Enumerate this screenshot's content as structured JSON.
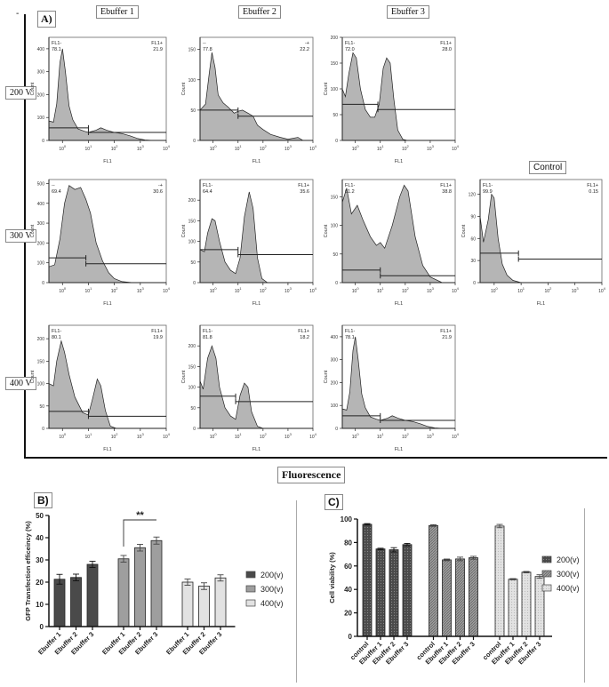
{
  "figure": {
    "panel_a_label": "A)",
    "panel_b_label": "B)",
    "panel_c_label": "C)",
    "column_headers": [
      "Ebuffer 1",
      "Ebuffer 2",
      "Ebuffer 3"
    ],
    "row_headers": [
      "200 V",
      "300 V",
      "400 V"
    ],
    "control_header": "Control",
    "footer_label": "Fluorescence",
    "corner_mark": "-"
  },
  "chart_data": [
    {
      "type": "histogram",
      "id": "e1-200",
      "xlabel": "FL1",
      "ylabel": "Count",
      "xscale": "log",
      "xlim": [
        0.3,
        10000
      ],
      "xticks": [
        "10^0",
        "10^1",
        "10^2",
        "10^3",
        "10^4"
      ],
      "ylim": [
        0,
        450
      ],
      "yticks": [
        0,
        100,
        200,
        300,
        400
      ],
      "gate_neg_label": "FL1-",
      "gate_neg_value": "78.1",
      "gate_pos_label": "FL1+",
      "gate_pos_value": "21.9",
      "gate_neg_level": 55,
      "gate_pos_level": 35,
      "gate_split": 10,
      "profile": [
        [
          0.3,
          85
        ],
        [
          0.45,
          80
        ],
        [
          0.6,
          160
        ],
        [
          0.8,
          340
        ],
        [
          1.0,
          400
        ],
        [
          1.3,
          300
        ],
        [
          1.8,
          150
        ],
        [
          2.5,
          90
        ],
        [
          4,
          50
        ],
        [
          7,
          40
        ],
        [
          10,
          35
        ],
        [
          20,
          45
        ],
        [
          30,
          55
        ],
        [
          50,
          45
        ],
        [
          100,
          35
        ],
        [
          200,
          30
        ],
        [
          400,
          20
        ],
        [
          800,
          8
        ],
        [
          1500,
          2
        ],
        [
          3000,
          0
        ]
      ]
    },
    {
      "type": "histogram",
      "id": "e2-200",
      "xlabel": "FL1",
      "ylabel": "Count",
      "xscale": "log",
      "xlim": [
        0.3,
        10000
      ],
      "xticks": [
        "10^0",
        "10^1",
        "10^2",
        "10^3",
        "10^4"
      ],
      "ylim": [
        0,
        170
      ],
      "yticks": [
        0,
        50,
        100,
        150
      ],
      "gate_neg_label": "--",
      "gate_neg_value": "77.8",
      "gate_pos_label": "-+",
      "gate_pos_value": "22.2",
      "gate_neg_level": 50,
      "gate_pos_level": 40,
      "gate_split": 10,
      "profile": [
        [
          0.3,
          50
        ],
        [
          0.5,
          60
        ],
        [
          0.7,
          110
        ],
        [
          0.9,
          145
        ],
        [
          1.2,
          120
        ],
        [
          1.6,
          75
        ],
        [
          2.5,
          62
        ],
        [
          4,
          55
        ],
        [
          7,
          45
        ],
        [
          10,
          48
        ],
        [
          15,
          50
        ],
        [
          25,
          45
        ],
        [
          40,
          40
        ],
        [
          60,
          25
        ],
        [
          100,
          18
        ],
        [
          200,
          10
        ],
        [
          500,
          5
        ],
        [
          1000,
          2
        ],
        [
          2500,
          5
        ],
        [
          4000,
          0
        ]
      ]
    },
    {
      "type": "histogram",
      "id": "e3-200",
      "xlabel": "FL1",
      "ylabel": "Count",
      "xscale": "log",
      "xlim": [
        0.3,
        10000
      ],
      "xticks": [
        "10^0",
        "10^1",
        "10^2",
        "10^3",
        "10^4"
      ],
      "ylim": [
        0,
        200
      ],
      "yticks": [
        0,
        50,
        100,
        150,
        200
      ],
      "gate_neg_label": "FL1-",
      "gate_neg_value": "72.0",
      "gate_pos_label": "FL1+",
      "gate_pos_value": "28.0",
      "gate_neg_level": 70,
      "gate_pos_level": 60,
      "gate_split": 8,
      "profile": [
        [
          0.3,
          100
        ],
        [
          0.4,
          85
        ],
        [
          0.55,
          130
        ],
        [
          0.8,
          170
        ],
        [
          1.1,
          160
        ],
        [
          1.6,
          100
        ],
        [
          2.5,
          60
        ],
        [
          4,
          45
        ],
        [
          6,
          45
        ],
        [
          9,
          70
        ],
        [
          13,
          140
        ],
        [
          18,
          160
        ],
        [
          25,
          150
        ],
        [
          35,
          80
        ],
        [
          50,
          20
        ],
        [
          80,
          2
        ],
        [
          120,
          0
        ]
      ]
    },
    {
      "type": "histogram",
      "id": "e1-300",
      "xlabel": "FL1",
      "ylabel": "Count",
      "xscale": "log",
      "xlim": [
        0.3,
        10000
      ],
      "xticks": [
        "10^0",
        "10^1",
        "10^2",
        "10^3",
        "10^4"
      ],
      "ylim": [
        0,
        520
      ],
      "yticks": [
        0,
        100,
        200,
        300,
        400,
        500
      ],
      "gate_neg_label": "--",
      "gate_neg_value": "69.4",
      "gate_pos_label": "-+",
      "gate_pos_value": "30.6",
      "gate_neg_level": 125,
      "gate_pos_level": 95,
      "gate_split": 8,
      "profile": [
        [
          0.3,
          80
        ],
        [
          0.5,
          90
        ],
        [
          0.8,
          220
        ],
        [
          1.2,
          400
        ],
        [
          1.8,
          490
        ],
        [
          3,
          470
        ],
        [
          5,
          480
        ],
        [
          8,
          420
        ],
        [
          12,
          350
        ],
        [
          20,
          200
        ],
        [
          35,
          110
        ],
        [
          60,
          50
        ],
        [
          100,
          20
        ],
        [
          200,
          5
        ],
        [
          500,
          0
        ]
      ]
    },
    {
      "type": "histogram",
      "id": "e2-300",
      "xlabel": "FL1",
      "ylabel": "Count",
      "xscale": "log",
      "xlim": [
        0.3,
        10000
      ],
      "xticks": [
        "10^0",
        "10^1",
        "10^2",
        "10^3",
        "10^4"
      ],
      "ylim": [
        0,
        250
      ],
      "yticks": [
        0,
        50,
        100,
        150,
        200
      ],
      "gate_neg_label": "FL1-",
      "gate_neg_value": "64.4",
      "gate_pos_label": "FL1+",
      "gate_pos_value": "35.6",
      "gate_neg_level": 80,
      "gate_pos_level": 68,
      "gate_split": 10,
      "profile": [
        [
          0.3,
          80
        ],
        [
          0.45,
          75
        ],
        [
          0.6,
          120
        ],
        [
          0.9,
          155
        ],
        [
          1.2,
          150
        ],
        [
          1.8,
          100
        ],
        [
          3,
          50
        ],
        [
          5,
          30
        ],
        [
          8,
          22
        ],
        [
          12,
          60
        ],
        [
          18,
          160
        ],
        [
          28,
          220
        ],
        [
          40,
          180
        ],
        [
          60,
          60
        ],
        [
          90,
          10
        ],
        [
          150,
          0
        ]
      ]
    },
    {
      "type": "histogram",
      "id": "e3-300",
      "xlabel": "FL1",
      "ylabel": "Count",
      "xscale": "log",
      "xlim": [
        0.3,
        10000
      ],
      "xticks": [
        "10^0",
        "10^1",
        "10^2",
        "10^3",
        "10^4"
      ],
      "ylim": [
        0,
        180
      ],
      "yticks": [
        0,
        50,
        100,
        150
      ],
      "gate_neg_label": "FL1-",
      "gate_neg_value": "61.2",
      "gate_pos_label": "FL1+",
      "gate_pos_value": "38.8",
      "gate_neg_level": 22,
      "gate_pos_level": 12,
      "gate_split": 10,
      "profile": [
        [
          0.3,
          140
        ],
        [
          0.45,
          165
        ],
        [
          0.7,
          120
        ],
        [
          1.2,
          135
        ],
        [
          2,
          110
        ],
        [
          4,
          80
        ],
        [
          7,
          65
        ],
        [
          10,
          70
        ],
        [
          15,
          60
        ],
        [
          30,
          100
        ],
        [
          60,
          150
        ],
        [
          90,
          170
        ],
        [
          130,
          160
        ],
        [
          250,
          80
        ],
        [
          500,
          30
        ],
        [
          1000,
          10
        ],
        [
          3000,
          0
        ]
      ]
    },
    {
      "type": "histogram",
      "id": "control",
      "xlabel": "FL1",
      "ylabel": "Count",
      "xscale": "log",
      "xlim": [
        0.3,
        10000
      ],
      "xticks": [
        "10^0",
        "10^1",
        "10^2",
        "10^3",
        "10^4"
      ],
      "ylim": [
        0,
        140
      ],
      "yticks": [
        0,
        30,
        60,
        90,
        120
      ],
      "gate_neg_label": "FL1-",
      "gate_neg_value": "99.9",
      "gate_pos_label": "FL1+",
      "gate_pos_value": "0.15",
      "gate_neg_level": 40,
      "gate_pos_level": 32,
      "gate_split": 8,
      "profile": [
        [
          0.3,
          90
        ],
        [
          0.4,
          55
        ],
        [
          0.6,
          85
        ],
        [
          0.8,
          120
        ],
        [
          1.0,
          115
        ],
        [
          1.4,
          60
        ],
        [
          2,
          25
        ],
        [
          3,
          10
        ],
        [
          5,
          3
        ],
        [
          10,
          0
        ]
      ]
    },
    {
      "type": "histogram",
      "id": "e1-400",
      "xlabel": "FL1",
      "ylabel": "Count",
      "xscale": "log",
      "xlim": [
        0.3,
        10000
      ],
      "xticks": [
        "10^0",
        "10^1",
        "10^2",
        "10^3",
        "10^4"
      ],
      "ylim": [
        0,
        230
      ],
      "yticks": [
        0,
        50,
        100,
        150,
        200
      ],
      "gate_neg_label": "FL1-",
      "gate_neg_value": "80.1",
      "gate_pos_label": "FL1+",
      "gate_pos_value": "19.9",
      "gate_neg_level": 38,
      "gate_pos_level": 27,
      "gate_split": 10,
      "profile": [
        [
          0.3,
          100
        ],
        [
          0.45,
          95
        ],
        [
          0.6,
          150
        ],
        [
          0.9,
          195
        ],
        [
          1.2,
          170
        ],
        [
          1.8,
          120
        ],
        [
          3,
          70
        ],
        [
          6,
          35
        ],
        [
          10,
          30
        ],
        [
          15,
          70
        ],
        [
          22,
          110
        ],
        [
          30,
          95
        ],
        [
          45,
          40
        ],
        [
          70,
          5
        ],
        [
          120,
          0
        ]
      ]
    },
    {
      "type": "histogram",
      "id": "e2-400",
      "xlabel": "FL1",
      "ylabel": "Count",
      "xscale": "log",
      "xlim": [
        0.3,
        10000
      ],
      "xticks": [
        "10^0",
        "10^1",
        "10^2",
        "10^3",
        "10^4"
      ],
      "ylim": [
        0,
        250
      ],
      "yticks": [
        0,
        50,
        100,
        150,
        200
      ],
      "gate_neg_label": "FL1-",
      "gate_neg_value": "81.8",
      "gate_pos_label": "FL1+",
      "gate_pos_value": "18.2",
      "gate_neg_level": 78,
      "gate_pos_level": 65,
      "gate_split": 8,
      "profile": [
        [
          0.3,
          115
        ],
        [
          0.4,
          95
        ],
        [
          0.6,
          170
        ],
        [
          0.9,
          200
        ],
        [
          1.3,
          170
        ],
        [
          1.8,
          100
        ],
        [
          3,
          50
        ],
        [
          5,
          30
        ],
        [
          8,
          22
        ],
        [
          12,
          80
        ],
        [
          18,
          110
        ],
        [
          25,
          100
        ],
        [
          35,
          40
        ],
        [
          60,
          5
        ],
        [
          100,
          0
        ]
      ]
    },
    {
      "type": "histogram",
      "id": "e3-400",
      "xlabel": "FL1",
      "ylabel": "Count",
      "xscale": "log",
      "xlim": [
        0.3,
        10000
      ],
      "xticks": [
        "10^0",
        "10^1",
        "10^2",
        "10^3",
        "10^4"
      ],
      "ylim": [
        0,
        450
      ],
      "yticks": [
        0,
        100,
        200,
        300,
        400
      ],
      "gate_neg_label": "FL1-",
      "gate_neg_value": "78.1",
      "gate_pos_label": "FL1+",
      "gate_pos_value": "21.9",
      "gate_neg_level": 55,
      "gate_pos_level": 35,
      "gate_split": 10,
      "profile": [
        [
          0.3,
          85
        ],
        [
          0.45,
          80
        ],
        [
          0.6,
          160
        ],
        [
          0.8,
          340
        ],
        [
          1.0,
          400
        ],
        [
          1.3,
          300
        ],
        [
          1.8,
          150
        ],
        [
          2.5,
          90
        ],
        [
          4,
          50
        ],
        [
          7,
          40
        ],
        [
          10,
          35
        ],
        [
          20,
          45
        ],
        [
          30,
          55
        ],
        [
          50,
          45
        ],
        [
          100,
          35
        ],
        [
          200,
          30
        ],
        [
          400,
          20
        ],
        [
          800,
          8
        ],
        [
          1500,
          2
        ],
        [
          3000,
          0
        ]
      ]
    },
    {
      "type": "bar",
      "id": "transfection",
      "title": "",
      "ylabel": "GFP Transfection efficeincy (%)",
      "xlabel": "",
      "ylim": [
        0,
        50
      ],
      "yticks": [
        0,
        10,
        20,
        30,
        40,
        50
      ],
      "categories": [
        "Ebuffer 1",
        "Ebuffer 2",
        "Ebuffer 3"
      ],
      "series": [
        {
          "name": "200(v)",
          "color": "#4a4a4a",
          "values": [
            21.3,
            22.1,
            28.0
          ],
          "errors": [
            2.2,
            1.5,
            1.4
          ]
        },
        {
          "name": "300(v)",
          "color": "#9e9e9e",
          "values": [
            30.5,
            35.5,
            38.7
          ],
          "errors": [
            1.5,
            1.5,
            1.6
          ]
        },
        {
          "name": "400(v)",
          "color": "#e2e2e2",
          "values": [
            20.0,
            18.2,
            21.9
          ],
          "errors": [
            1.4,
            1.5,
            1.4
          ]
        }
      ],
      "annotation": {
        "text": "**",
        "from": "300(v) Ebuffer 1",
        "to": "300(v) Ebuffer 3"
      },
      "legend": "right"
    },
    {
      "type": "bar",
      "id": "viability",
      "title": "",
      "ylabel": "Cell viability (%)",
      "xlabel": "",
      "ylim": [
        0,
        100
      ],
      "yticks": [
        0,
        20,
        40,
        60,
        80,
        100
      ],
      "categories": [
        "control",
        "Ebuffer 1",
        "Ebuffer 2",
        "Ebuffer 3"
      ],
      "series": [
        {
          "name": "200(v)",
          "color": "#4a4a4a",
          "pattern": "dots",
          "values": [
            95.5,
            74.5,
            73.8,
            78.2
          ],
          "errors": [
            0.6,
            0.6,
            1.8,
            1.0
          ]
        },
        {
          "name": "300(v)",
          "color": "#9e9e9e",
          "pattern": "hatch",
          "values": [
            94.5,
            65.2,
            66.0,
            67.0
          ],
          "errors": [
            0.7,
            0.7,
            1.5,
            1.2
          ]
        },
        {
          "name": "400(v)",
          "color": "#e2e2e2",
          "pattern": "dots",
          "values": [
            94.0,
            48.7,
            54.7,
            51.0
          ],
          "errors": [
            1.4,
            0.5,
            0.6,
            1.5
          ]
        }
      ],
      "legend": "right"
    }
  ]
}
